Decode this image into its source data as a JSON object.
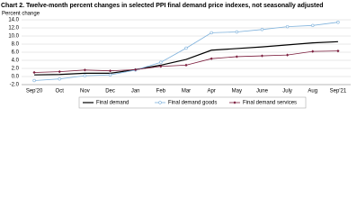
{
  "chart_data": {
    "type": "line",
    "title": "Chart 2. Twelve-month percent changes in selected PPI final demand price indexes, not seasonally adjusted",
    "y_label": "Percent change",
    "categories": [
      "Sep'20",
      "Oct",
      "Nov",
      "Dec",
      "Jan",
      "Feb",
      "Mar",
      "Apr",
      "May",
      "June",
      "July",
      "Aug",
      "Sep'21"
    ],
    "series": [
      {
        "name": "Final demand",
        "color": "#000000",
        "marker": "none",
        "values": [
          0.4,
          0.5,
          0.8,
          0.8,
          1.7,
          2.8,
          4.2,
          6.5,
          6.9,
          7.3,
          7.8,
          8.3,
          8.6
        ]
      },
      {
        "name": "Final demand goods",
        "color": "#7fb2dc",
        "marker": "circle",
        "values": [
          -1.0,
          -0.6,
          0.2,
          0.4,
          1.6,
          3.5,
          7.0,
          10.8,
          11.0,
          11.6,
          12.3,
          12.6,
          13.4
        ]
      },
      {
        "name": "Final demand services",
        "color": "#7b1c3c",
        "marker": "diamond",
        "values": [
          1.0,
          1.2,
          1.6,
          1.4,
          1.7,
          2.5,
          2.8,
          4.4,
          4.9,
          5.1,
          5.3,
          6.2,
          6.3
        ]
      }
    ],
    "ylim": [
      -2,
      14
    ],
    "yticks": [
      {
        "value": -2,
        "label": "-2.0"
      },
      {
        "value": 0,
        "label": "0.0"
      },
      {
        "value": 2,
        "label": "2.0"
      },
      {
        "value": 4,
        "label": "4.0"
      },
      {
        "value": 6,
        "label": "6.0"
      },
      {
        "value": 8,
        "label": "8.0"
      },
      {
        "value": 10,
        "label": "10.0"
      },
      {
        "value": 12,
        "label": "12.0"
      },
      {
        "value": 14,
        "label": "14.0"
      }
    ],
    "grid": true
  }
}
